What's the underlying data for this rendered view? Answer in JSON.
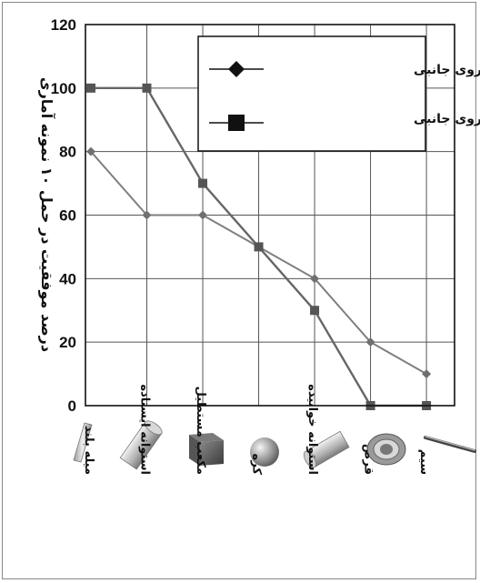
{
  "chart_data": {
    "type": "line",
    "title": "",
    "xlabel": "",
    "ylabel": "درصد موفقیت در حمل ۱۰ نمونه آماری",
    "ylim": [
      0,
      120
    ],
    "yticks": [
      0,
      20,
      40,
      60,
      80,
      100,
      120
    ],
    "grid": true,
    "legend_position": "top-right",
    "categories": [
      "میله بلند",
      "استوانه ایستاده",
      "مکعب مستطیل",
      "کره",
      "استوانه خوابیده",
      "قرص",
      "سیم"
    ],
    "category_icons": [
      "long-rod-icon",
      "standing-cylinder-icon",
      "rectangular-cube-icon",
      "sphere-icon",
      "lying-cylinder-icon",
      "disc-icon",
      "wire-icon"
    ],
    "series": [
      {
        "name": "بدون نیروی جانبی",
        "marker": "diamond",
        "color": "#7f7f7f",
        "values": [
          80,
          60,
          60,
          50,
          40,
          20,
          10
        ]
      },
      {
        "name": "با نیروی جانبی",
        "marker": "square",
        "color": "#666666",
        "values": [
          100,
          100,
          70,
          50,
          30,
          0,
          0
        ]
      }
    ]
  }
}
